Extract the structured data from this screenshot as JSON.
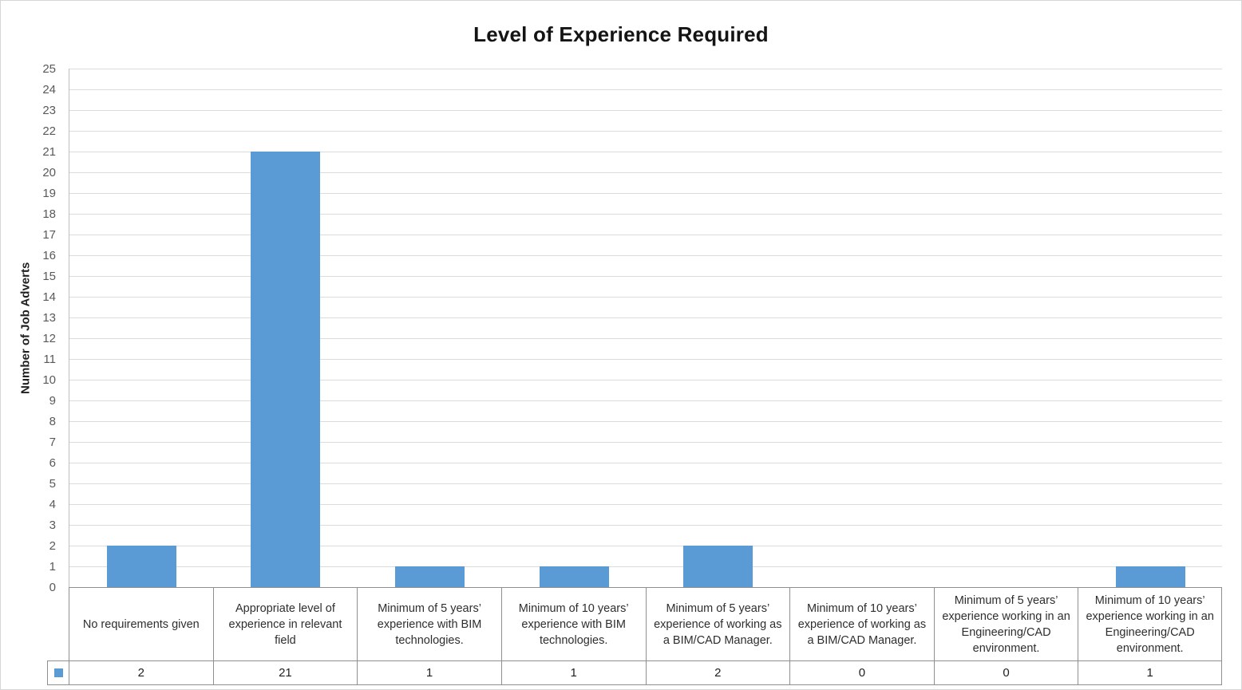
{
  "chart_data": {
    "type": "bar",
    "title": "Level of Experience Required",
    "xlabel": "",
    "ylabel": "Number of Job Adverts",
    "ylim": [
      0,
      25
    ],
    "ytick_step": 1,
    "grid": true,
    "legend_position": "data-table-key",
    "bar_color": "#5b9bd5",
    "categories": [
      "No requirements given",
      "Appropriate level of experience in relevant field",
      "Minimum of 5 years’ experience with BIM technologies.",
      "Minimum of 10 years’ experience with BIM technologies.",
      "Minimum of 5 years’ experience of working as a BIM/CAD Manager.",
      "Minimum of 10 years’ experience of working as a BIM/CAD Manager.",
      "Minimum of 5 years’ experience working in an Engineering/CAD environment.",
      "Minimum of 10 years’ experience working in an Engineering/CAD environment."
    ],
    "values": [
      2,
      21,
      1,
      1,
      2,
      0,
      0,
      1
    ],
    "data_table": {
      "shown": true,
      "legend_key_color": "#5b9bd5",
      "values": [
        2,
        21,
        1,
        1,
        2,
        0,
        0,
        1
      ]
    }
  }
}
